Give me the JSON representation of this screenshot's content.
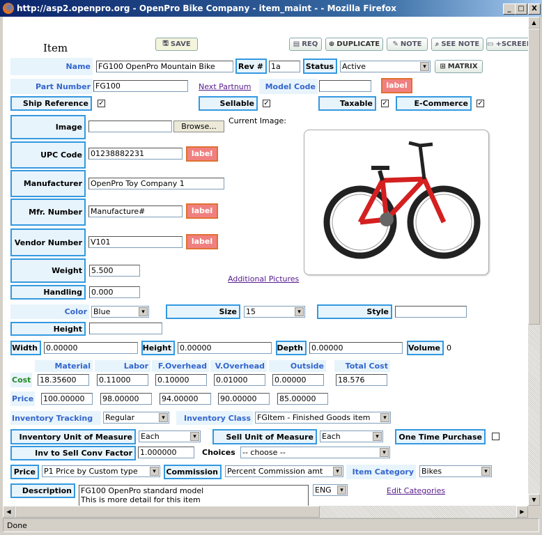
{
  "window": {
    "title": "http://asp2.openpro.org - OpenPro Bike Company - item_maint - - Mozilla Firefox",
    "minimize": "_",
    "maximize": "□",
    "close": "X"
  },
  "page": {
    "title": "Item"
  },
  "toolbar": {
    "save": "SAVE",
    "req": "REQ",
    "duplicate": "DUPLICATE",
    "note": "NOTE",
    "see_note": "SEE NOTE",
    "screen": "+SCREEN",
    "matrix": "MATRIX"
  },
  "fields": {
    "name": {
      "label": "Name",
      "value": "FG100 OpenPro Mountain Bike"
    },
    "rev": {
      "label": "Rev #",
      "value": "1a"
    },
    "status": {
      "label": "Status",
      "value": "Active"
    },
    "part_number": {
      "label": "Part Number",
      "value": "FG100"
    },
    "next_partnum": "Next Partnum",
    "model_code": {
      "label": "Model Code",
      "value": ""
    },
    "label_button": "label",
    "ship_reference": {
      "label": "Ship Reference",
      "checked": true
    },
    "sellable": {
      "label": "Sellable",
      "checked": true
    },
    "taxable": {
      "label": "Taxable",
      "checked": true
    },
    "ecommerce": {
      "label": "E-Commerce",
      "checked": true
    },
    "image": {
      "label": "Image",
      "value": "",
      "browse": "Browse...",
      "current": "Current Image:"
    },
    "upc": {
      "label": "UPC Code",
      "value": "01238882231"
    },
    "manufacturer": {
      "label": "Manufacturer",
      "value": "OpenPro Toy Company 1"
    },
    "mfr_number": {
      "label": "Mfr. Number",
      "value": "Manufacture#"
    },
    "vendor_number": {
      "label": "Vendor Number",
      "value": "V101"
    },
    "weight": {
      "label": "Weight",
      "value": "5.500"
    },
    "handling": {
      "label": "Handling",
      "value": "0.000"
    },
    "additional_pictures": "Additional Pictures",
    "color": {
      "label": "Color",
      "value": "Blue"
    },
    "size": {
      "label": "Size",
      "value": "15"
    },
    "style": {
      "label": "Style",
      "value": ""
    },
    "height1": {
      "label": "Height",
      "value": ""
    },
    "width": {
      "label": "Width",
      "value": "0.00000"
    },
    "height2": {
      "label": "Height",
      "value": "0.00000"
    },
    "depth": {
      "label": "Depth",
      "value": "0.00000"
    },
    "volume": {
      "label": "Volume",
      "value": "0"
    }
  },
  "costs": {
    "headers": [
      "Material",
      "Labor",
      "F.Overhead",
      "V.Overhead",
      "Outside",
      "Total Cost"
    ],
    "cost_label": "Cost",
    "cost": [
      "18.35600",
      "0.11000",
      "0.10000",
      "0.01000",
      "0.00000",
      "18.576"
    ],
    "price_label": "Price",
    "price": [
      "100.00000",
      "98.00000",
      "94.00000",
      "90.00000",
      "85.00000"
    ]
  },
  "inventory": {
    "tracking": {
      "label": "Inventory Tracking",
      "value": "Regular"
    },
    "class": {
      "label": "Inventory Class",
      "value": "FGItem - Finished Goods item"
    },
    "inv_uom": {
      "label": "Inventory Unit of Measure",
      "value": "Each"
    },
    "sell_uom": {
      "label": "Sell Unit of Measure",
      "value": "Each"
    },
    "one_time": {
      "label": "One Time Purchase",
      "checked": false
    },
    "conv": {
      "label": "Inv to Sell Conv Factor",
      "value": "1.000000"
    },
    "choices": {
      "label": "Choices",
      "value": "-- choose --"
    },
    "price": {
      "label": "Price",
      "value": "P1 Price by Custom type"
    },
    "commission": {
      "label": "Commission",
      "value": "Percent Commission amt"
    },
    "category": {
      "label": "Item Category",
      "value": "Bikes"
    },
    "description": {
      "label": "Description",
      "line1": "FG100 OpenPro standard model",
      "line2": "This is more detail for this item",
      "lang": "ENG"
    },
    "edit_categories": "Edit Categories"
  },
  "status_bar": {
    "text": "Done"
  },
  "colors": {
    "label_bg": "#e8f4fc",
    "label_border": "#3399e0",
    "label_text": "#3366cc",
    "cost_label": "#228822",
    "label_button": "#f08080"
  }
}
